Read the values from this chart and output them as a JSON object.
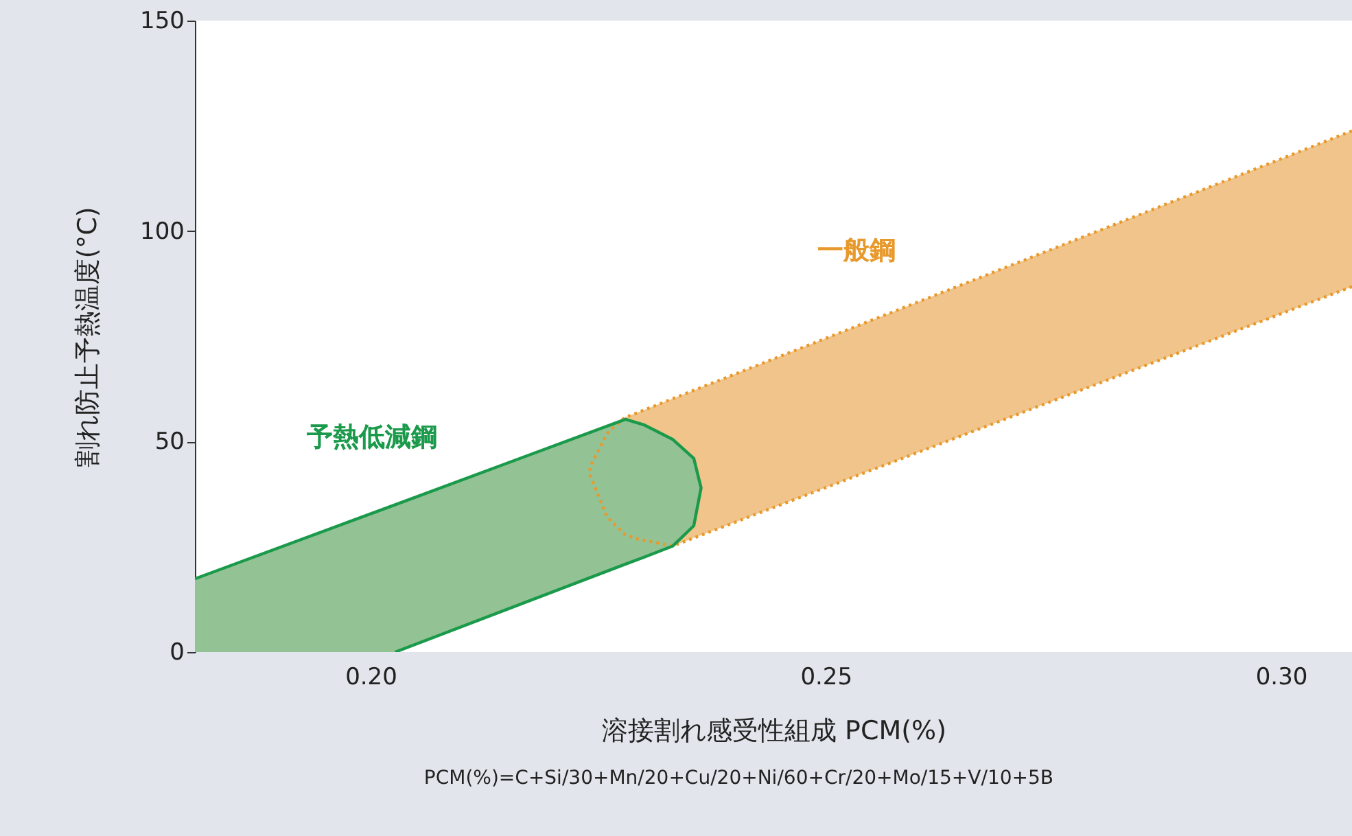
{
  "chart_data": {
    "type": "area",
    "xlabel": "溶接割れ感受性組成 PCM(%)",
    "ylabel": "割れ防止予熱温度(°C)",
    "xlim": [
      0.1807,
      0.3078
    ],
    "ylim": [
      0,
      150
    ],
    "xticks": [
      {
        "value": 0.2,
        "label": "0.20"
      },
      {
        "value": 0.25,
        "label": "0.25"
      },
      {
        "value": 0.3,
        "label": "0.30"
      }
    ],
    "yticks": [
      0,
      50,
      100,
      150
    ],
    "grid": false,
    "series": [
      {
        "color": "#f0c48a",
        "x": [
          0.2241,
          0.226,
          0.2279,
          0.229,
          0.2332,
          0.3078
        ],
        "values": [
          null,
          null,
          null,
          null,
          null,
          null
        ],
        "lower": [
          42,
          32,
          28,
          27,
          25.2,
          86.8
        ],
        "upper": [
          44,
          52,
          55.7,
          56.6,
          60.2,
          123.8
        ]
      },
      {
        "color": "#93c295",
        "x": [
          0.1807,
          0.2027,
          0.228,
          0.23,
          0.2332,
          0.2355,
          0.2363
        ],
        "values": [
          null,
          null,
          null,
          null,
          null,
          null,
          null
        ],
        "lower": [
          0,
          0,
          20.9,
          22.5,
          25.2,
          30,
          39
        ],
        "upper": [
          17.4,
          35,
          55.3,
          54,
          50.5,
          46,
          39
        ]
      },
      {
        "name": "一般鋼",
        "type": "line",
        "color": "#e8992c",
        "line_style": "dotted",
        "x": [
          0.3078,
          0.2332,
          0.229,
          0.2279,
          0.226,
          0.2241,
          0.2241,
          0.226,
          0.2279,
          0.229,
          0.2332,
          0.3078
        ],
        "values": [
          123.8,
          60.2,
          56.6,
          55.7,
          52,
          44,
          42,
          32,
          28,
          27,
          25.2,
          86.8
        ]
      },
      {
        "name": "予熱低減鋼",
        "type": "line",
        "color": "#1a9a4a",
        "line_style": "solid",
        "x": [
          0.1807,
          0.2027,
          0.228,
          0.23,
          0.2332,
          0.2355,
          0.2363,
          0.2355,
          0.2332,
          0.23,
          0.228,
          0.2027
        ],
        "values": [
          17.4,
          35,
          55.3,
          54,
          50.5,
          46,
          39,
          30,
          25.2,
          22.5,
          20.9,
          0
        ]
      }
    ],
    "annotations": [
      "PCM(%)=C+Si/30+Mn/20+Cu/20+Ni/60+Cr/20+Mo/15+V/10+5B"
    ]
  }
}
